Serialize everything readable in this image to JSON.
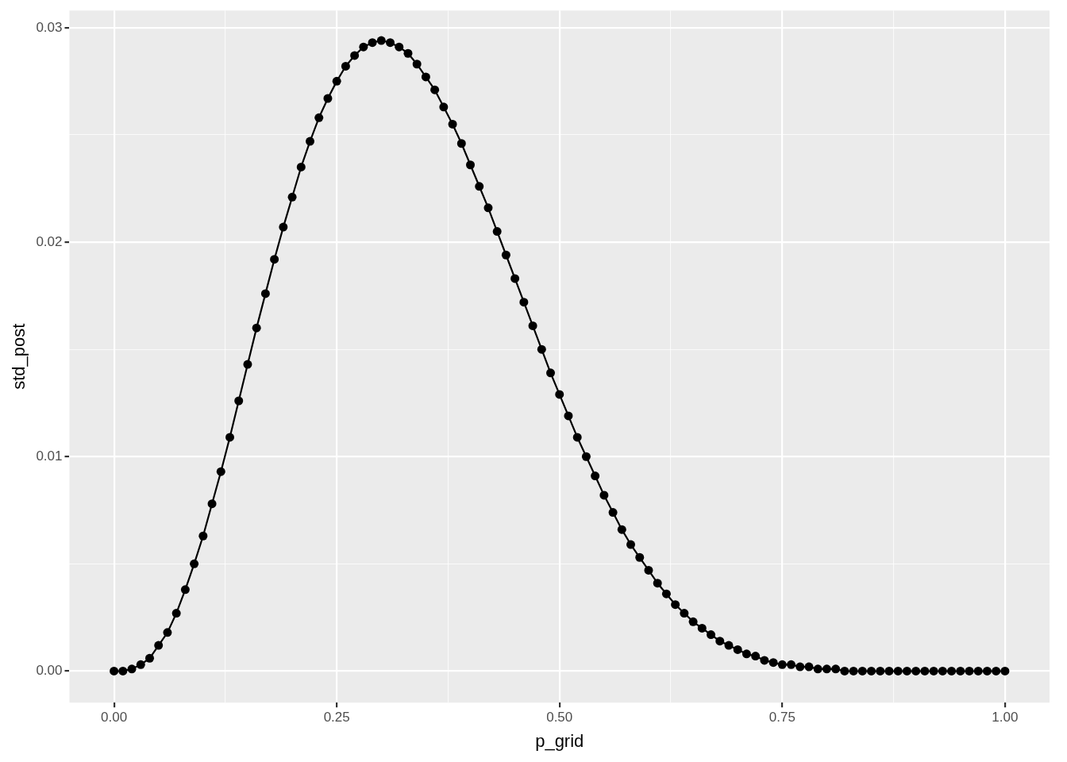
{
  "chart_data": {
    "type": "line",
    "xlabel": "p_grid",
    "ylabel": "std_post",
    "x": [
      0,
      0.01,
      0.02,
      0.03,
      0.04,
      0.05,
      0.06,
      0.07,
      0.08,
      0.09,
      0.1,
      0.11,
      0.12,
      0.13,
      0.14,
      0.15,
      0.16,
      0.17,
      0.18,
      0.19,
      0.2,
      0.21,
      0.22,
      0.23,
      0.24,
      0.25,
      0.26,
      0.27,
      0.28,
      0.29,
      0.3,
      0.31,
      0.32,
      0.33,
      0.34,
      0.35,
      0.36,
      0.37,
      0.38,
      0.39,
      0.4,
      0.41,
      0.42,
      0.43,
      0.44,
      0.45,
      0.46,
      0.47,
      0.48,
      0.49,
      0.5,
      0.51,
      0.52,
      0.53,
      0.54,
      0.55,
      0.56,
      0.57,
      0.58,
      0.59,
      0.6,
      0.61,
      0.62,
      0.63,
      0.64,
      0.65,
      0.66,
      0.67,
      0.68,
      0.69,
      0.7,
      0.71,
      0.72,
      0.73,
      0.74,
      0.75,
      0.76,
      0.77,
      0.78,
      0.79,
      0.8,
      0.81,
      0.82,
      0.83,
      0.84,
      0.85,
      0.86,
      0.87,
      0.88,
      0.89,
      0.9,
      0.91,
      0.92,
      0.93,
      0.94,
      0.95,
      0.96,
      0.97,
      0.98,
      0.99,
      1
    ],
    "series": [
      {
        "color": "#000000",
        "values": [
          0,
          0,
          0.0001,
          0.0003,
          0.0006,
          0.0012,
          0.0018,
          0.0027,
          0.0038,
          0.005,
          0.0063,
          0.0078,
          0.0093,
          0.0109,
          0.0126,
          0.0143,
          0.016,
          0.0176,
          0.0192,
          0.0207,
          0.0221,
          0.0235,
          0.0247,
          0.0258,
          0.0267,
          0.0275,
          0.0282,
          0.0287,
          0.0291,
          0.0293,
          0.0294,
          0.0293,
          0.0291,
          0.0288,
          0.0283,
          0.0277,
          0.0271,
          0.0263,
          0.0255,
          0.0246,
          0.0236,
          0.0226,
          0.0216,
          0.0205,
          0.0194,
          0.0183,
          0.0172,
          0.0161,
          0.015,
          0.0139,
          0.0129,
          0.0119,
          0.0109,
          0.01,
          0.0091,
          0.0082,
          0.0074,
          0.0066,
          0.0059,
          0.0053,
          0.0047,
          0.0041,
          0.0036,
          0.0031,
          0.0027,
          0.0023,
          0.002,
          0.0017,
          0.0014,
          0.0012,
          0.001,
          0.0008,
          0.0007,
          0.0005,
          0.0004,
          0.0003,
          0.0003,
          0.0002,
          0.0002,
          0.0001,
          0.0001,
          0.0001,
          0,
          0,
          0,
          0,
          0,
          0,
          0,
          0,
          0,
          0,
          0,
          0,
          0,
          0,
          0,
          0,
          0,
          0,
          0
        ]
      }
    ],
    "xlim": [
      -0.05,
      1.05
    ],
    "ylim": [
      -0.00147,
      0.0308
    ],
    "xticks": [
      {
        "value": 0,
        "label": "0.00"
      },
      {
        "value": 0.125,
        "label": null
      },
      {
        "value": 0.25,
        "label": "0.25"
      },
      {
        "value": 0.375,
        "label": null
      },
      {
        "value": 0.5,
        "label": "0.50"
      },
      {
        "value": 0.625,
        "label": null
      },
      {
        "value": 0.75,
        "label": "0.75"
      },
      {
        "value": 0.875,
        "label": null
      },
      {
        "value": 1,
        "label": "1.00"
      }
    ],
    "yticks": [
      {
        "value": 0,
        "label": "0.00"
      },
      {
        "value": 0.005,
        "label": null
      },
      {
        "value": 0.01,
        "label": "0.01"
      },
      {
        "value": 0.015,
        "label": null
      },
      {
        "value": 0.02,
        "label": "0.02"
      },
      {
        "value": 0.025,
        "label": null
      },
      {
        "value": 0.03,
        "label": "0.03"
      }
    ],
    "grid": true,
    "marker": "circle",
    "line_style": "solid"
  }
}
